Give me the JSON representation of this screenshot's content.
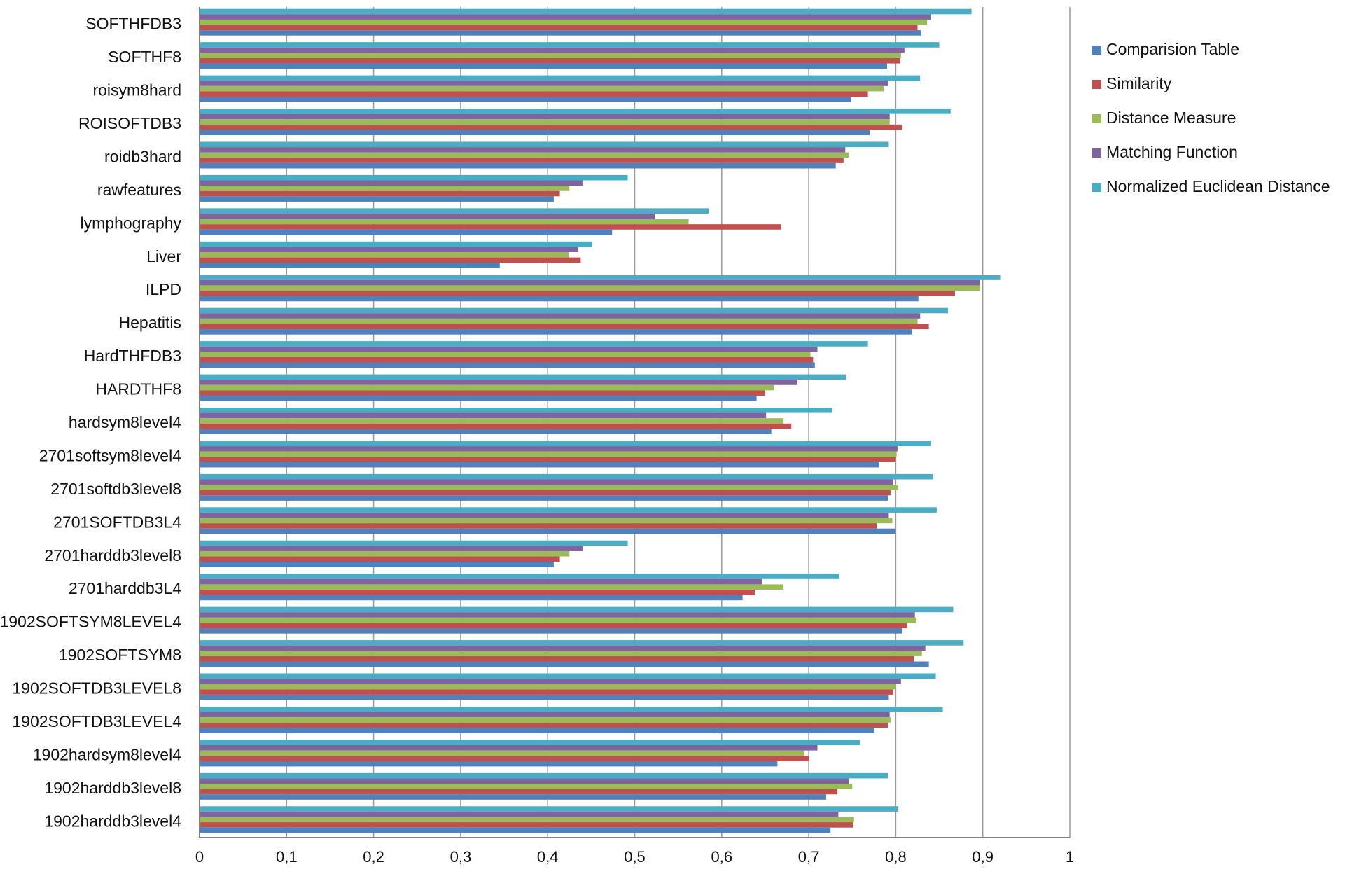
{
  "chart_data": {
    "type": "bar",
    "orientation": "horizontal",
    "title": "",
    "xlabel": "",
    "ylabel": "",
    "xlim": [
      0,
      1
    ],
    "x_ticks": [
      "0",
      "0,1",
      "0,2",
      "0,3",
      "0,4",
      "0,5",
      "0,6",
      "0,7",
      "0,8",
      "0,9",
      "1"
    ],
    "x_tick_values": [
      0,
      0.1,
      0.2,
      0.3,
      0.4,
      0.5,
      0.6,
      0.7,
      0.8,
      0.9,
      1.0
    ],
    "grid": "vertical",
    "legend_position": "top-right",
    "categories": [
      "SOFTHFDB3",
      "SOFTHF8",
      "roisym8hard",
      "ROISOFTDB3",
      "roidb3hard",
      "rawfeatures",
      "lymphography",
      "Liver",
      "ILPD",
      "Hepatitis",
      "HardTHFDB3",
      "HARDTHF8",
      "hardsym8level4",
      "2701softsym8level4",
      "2701softdb3level8",
      "2701SOFTDB3L4",
      "2701harddb3level8",
      "2701harddb3L4",
      "1902SOFTSYM8LEVEL4",
      "1902SOFTSYM8",
      "1902SOFTDB3LEVEL8",
      "1902SOFTDB3LEVEL4",
      "1902hardsym8level4",
      "1902harddb3level8",
      "1902harddb3level4"
    ],
    "series": [
      {
        "name": "Normalized Euclidean Distance",
        "color": "#4BACC6",
        "values": [
          0.887,
          0.85,
          0.828,
          0.863,
          0.792,
          0.492,
          0.585,
          0.451,
          0.92,
          0.86,
          0.768,
          0.743,
          0.727,
          0.84,
          0.843,
          0.847,
          0.492,
          0.735,
          0.866,
          0.878,
          0.846,
          0.854,
          0.759,
          0.791,
          0.803
        ]
      },
      {
        "name": "Matching Function",
        "color": "#8064A2",
        "values": [
          0.84,
          0.81,
          0.791,
          0.793,
          0.742,
          0.44,
          0.523,
          0.435,
          0.897,
          0.828,
          0.71,
          0.687,
          0.651,
          0.802,
          0.797,
          0.792,
          0.44,
          0.646,
          0.822,
          0.834,
          0.806,
          0.793,
          0.71,
          0.746,
          0.734
        ]
      },
      {
        "name": "Distance Measure",
        "color": "#9BBB59",
        "values": [
          0.836,
          0.806,
          0.786,
          0.793,
          0.746,
          0.425,
          0.562,
          0.424,
          0.897,
          0.825,
          0.702,
          0.66,
          0.671,
          0.801,
          0.803,
          0.796,
          0.425,
          0.671,
          0.823,
          0.83,
          0.8,
          0.794,
          0.695,
          0.75,
          0.752
        ]
      },
      {
        "name": "Similarity",
        "color": "#C0504D",
        "values": [
          0.825,
          0.805,
          0.768,
          0.807,
          0.74,
          0.414,
          0.668,
          0.438,
          0.868,
          0.838,
          0.705,
          0.65,
          0.68,
          0.8,
          0.794,
          0.778,
          0.414,
          0.638,
          0.813,
          0.821,
          0.797,
          0.791,
          0.7,
          0.733,
          0.751
        ]
      },
      {
        "name": "Comparision Table",
        "color": "#4F81BD",
        "values": [
          0.829,
          0.79,
          0.749,
          0.77,
          0.731,
          0.407,
          0.474,
          0.345,
          0.826,
          0.819,
          0.707,
          0.64,
          0.657,
          0.781,
          0.791,
          0.8,
          0.407,
          0.624,
          0.807,
          0.838,
          0.792,
          0.775,
          0.664,
          0.72,
          0.725
        ]
      }
    ]
  }
}
